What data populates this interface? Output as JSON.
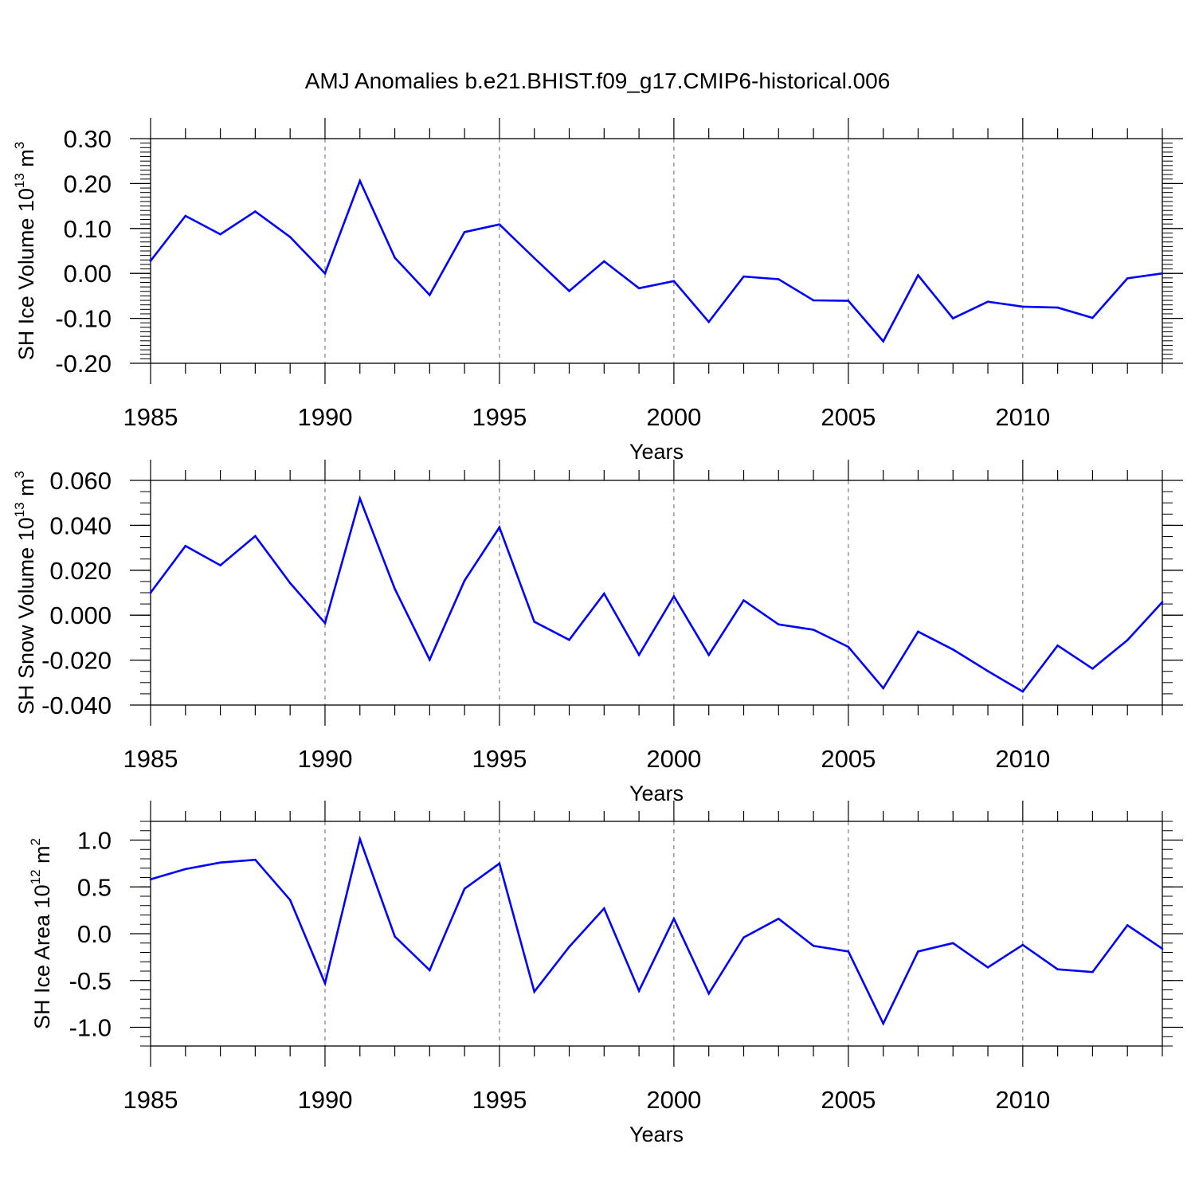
{
  "title": "AMJ Anomalies b.e21.BHIST.f09_g17.CMIP6-historical.006",
  "colors": {
    "line": "#0000ff",
    "axis": "#000000",
    "grid": "#666666"
  },
  "chart_data": [
    {
      "type": "line",
      "xlabel": "Years",
      "ylabel": {
        "prefix": "SH Ice Volume 10",
        "exp": "13",
        "unit": " m",
        "unit_exp": "3"
      },
      "xlim": [
        1985,
        2014
      ],
      "ylim": [
        -0.2,
        0.3
      ],
      "xticks": [
        "1985",
        "1990",
        "1995",
        "2000",
        "2005",
        "2010"
      ],
      "yticks": [
        "-0.20",
        "-0.10",
        "0.00",
        "0.10",
        "0.20",
        "0.30"
      ],
      "x": [
        1985,
        1986,
        1987,
        1988,
        1989,
        1990,
        1991,
        1992,
        1993,
        1994,
        1995,
        1996,
        1997,
        1998,
        1999,
        2000,
        2001,
        2002,
        2003,
        2004,
        2005,
        2006,
        2007,
        2008,
        2009,
        2010,
        2011,
        2012,
        2013,
        2014
      ],
      "y": [
        0.028,
        0.128,
        0.087,
        0.138,
        0.081,
        0.0,
        0.206,
        0.035,
        -0.048,
        0.092,
        0.109,
        0.034,
        -0.039,
        0.027,
        -0.033,
        -0.017,
        -0.108,
        -0.007,
        -0.013,
        -0.06,
        -0.061,
        -0.151,
        -0.004,
        -0.1,
        -0.063,
        -0.074,
        -0.076,
        -0.099,
        -0.011,
        0.0
      ]
    },
    {
      "type": "line",
      "xlabel": "Years",
      "ylabel": {
        "prefix": "SH Snow Volume 10",
        "exp": "13",
        "unit": " m",
        "unit_exp": "3"
      },
      "xlim": [
        1985,
        2014
      ],
      "ylim": [
        -0.04,
        0.06
      ],
      "xticks": [
        "1985",
        "1990",
        "1995",
        "2000",
        "2005",
        "2010"
      ],
      "yticks": [
        "-0.040",
        "-0.020",
        "0.000",
        "0.020",
        "0.040",
        "0.060"
      ],
      "x": [
        1985,
        1986,
        1987,
        1988,
        1989,
        1990,
        1991,
        1992,
        1993,
        1994,
        1995,
        1996,
        1997,
        1998,
        1999,
        2000,
        2001,
        2002,
        2003,
        2004,
        2005,
        2006,
        2007,
        2008,
        2009,
        2010,
        2011,
        2012,
        2013,
        2014
      ],
      "y": [
        0.01,
        0.0308,
        0.0222,
        0.0352,
        0.0143,
        -0.0035,
        0.0519,
        0.0117,
        -0.0198,
        0.0154,
        0.0391,
        -0.0029,
        -0.011,
        0.0096,
        -0.0177,
        0.0084,
        -0.0177,
        0.0066,
        -0.0041,
        -0.0065,
        -0.0141,
        -0.0325,
        -0.0073,
        -0.0153,
        -0.0249,
        -0.034,
        -0.0135,
        -0.0238,
        -0.0111,
        0.0058
      ]
    },
    {
      "type": "line",
      "xlabel": "Years",
      "ylabel": {
        "prefix": "SH Ice Area 10",
        "exp": "12",
        "unit": " m",
        "unit_exp": "2"
      },
      "xlim": [
        1985,
        2014
      ],
      "ylim": [
        -1.2,
        1.2
      ],
      "xticks": [
        "1985",
        "1990",
        "1995",
        "2000",
        "2005",
        "2010"
      ],
      "yticks": [
        "-1.0",
        "-0.5",
        "0.0",
        "0.5",
        "1.0"
      ],
      "x": [
        1985,
        1986,
        1987,
        1988,
        1989,
        1990,
        1991,
        1992,
        1993,
        1994,
        1995,
        1996,
        1997,
        1998,
        1999,
        2000,
        2001,
        2002,
        2003,
        2004,
        2005,
        2006,
        2007,
        2008,
        2009,
        2010,
        2011,
        2012,
        2013,
        2014
      ],
      "y": [
        0.58,
        0.69,
        0.76,
        0.79,
        0.36,
        -0.53,
        1.01,
        -0.03,
        -0.39,
        0.48,
        0.75,
        -0.62,
        -0.14,
        0.27,
        -0.61,
        0.16,
        -0.64,
        -0.04,
        0.16,
        -0.13,
        -0.19,
        -0.96,
        -0.19,
        -0.1,
        -0.36,
        -0.12,
        -0.38,
        -0.41,
        0.09,
        -0.16
      ]
    }
  ]
}
